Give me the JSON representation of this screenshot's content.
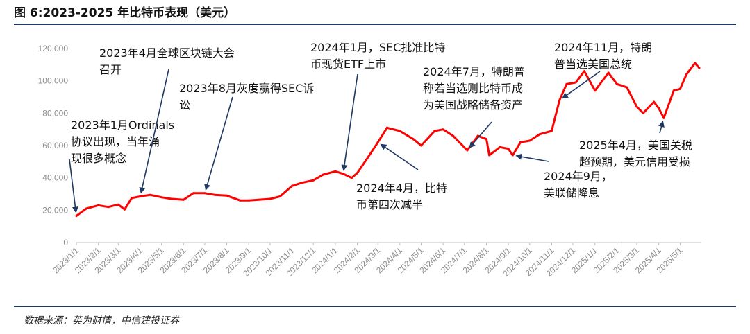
{
  "figure_title": "图 6:2023-2025 年比特币表现（美元）",
  "source": "数据来源：英为财情，中信建投证券",
  "colors": {
    "line": "#ff0000",
    "accent": "#1f3864",
    "tick": "#8c8c8c",
    "arrow": "#1f3864"
  },
  "chart_data": {
    "type": "line",
    "title": "",
    "xlabel": "",
    "ylabel": "",
    "ylim": [
      0,
      120000
    ],
    "yticks": [
      "0",
      "20,000",
      "40,000",
      "60,000",
      "80,000",
      "100,000",
      "120,000"
    ],
    "xticks": [
      "2023/1/1",
      "2023/2/1",
      "2023/3/1",
      "2023/4/1",
      "2023/5/1",
      "2023/6/1",
      "2023/7/1",
      "2023/8/1",
      "2023/9/1",
      "2023/10/1",
      "2023/11/1",
      "2023/12/1",
      "2024/1/1",
      "2024/2/1",
      "2024/3/1",
      "2024/4/1",
      "2024/5/1",
      "2024/6/1",
      "2024/7/1",
      "2024/8/1",
      "2024/9/1",
      "2024/10/1",
      "2024/11/1",
      "2024/12/1",
      "2025/1/1",
      "2025/2/1",
      "2025/3/1",
      "2025/4/1",
      "2025/5/1"
    ],
    "grid": false,
    "series": [
      {
        "x": [
          "2023/1/1",
          "2023/1/15",
          "2023/2/1",
          "2023/2/15",
          "2023/3/1",
          "2023/3/10",
          "2023/3/20",
          "2023/4/1",
          "2023/4/15",
          "2023/5/1",
          "2023/5/15",
          "2023/6/1",
          "2023/6/15",
          "2023/7/1",
          "2023/7/15",
          "2023/8/1",
          "2023/8/20",
          "2023/9/1",
          "2023/9/15",
          "2023/10/1",
          "2023/10/15",
          "2023/11/1",
          "2023/11/15",
          "2023/12/1",
          "2023/12/15",
          "2024/1/1",
          "2024/1/12",
          "2024/1/24",
          "2024/2/1",
          "2024/2/15",
          "2024/3/1",
          "2024/3/14",
          "2024/4/1",
          "2024/4/20",
          "2024/5/1",
          "2024/5/20",
          "2024/6/1",
          "2024/6/15",
          "2024/7/5",
          "2024/7/20",
          "2024/8/1",
          "2024/8/5",
          "2024/8/20",
          "2024/9/1",
          "2024/9/7",
          "2024/9/18",
          "2024/10/1",
          "2024/10/15",
          "2024/11/1",
          "2024/11/12",
          "2024/11/22",
          "2024/12/5",
          "2024/12/17",
          "2025/1/1",
          "2025/1/20",
          "2025/2/1",
          "2025/2/15",
          "2025/3/1",
          "2025/3/10",
          "2025/3/25",
          "2025/4/1",
          "2025/4/8",
          "2025/4/22",
          "2025/5/1",
          "2025/5/10",
          "2025/5/22",
          "2025/5/28"
        ],
        "values": [
          16500,
          21000,
          23000,
          22000,
          23500,
          20500,
          27500,
          28500,
          29500,
          28000,
          27000,
          26500,
          30500,
          30500,
          29500,
          29000,
          26000,
          26000,
          26500,
          27000,
          28500,
          35000,
          37000,
          38500,
          42000,
          44000,
          42500,
          40000,
          43000,
          52000,
          62000,
          71000,
          69000,
          64000,
          60000,
          69000,
          70000,
          66000,
          57000,
          66000,
          64000,
          54000,
          59000,
          58000,
          54000,
          62000,
          63000,
          67000,
          69000,
          88000,
          98000,
          99000,
          106000,
          94000,
          105000,
          98000,
          96000,
          84000,
          80000,
          87000,
          83000,
          77000,
          94000,
          95000,
          104000,
          111000,
          108000
        ]
      }
    ],
    "annotations": [
      {
        "lines": [
          "2023年1月Ordinals",
          "协议出现，当年涌",
          "现很多概念"
        ],
        "point": "2023/1/1"
      },
      {
        "lines": [
          "2023年4月全球区块链大会",
          "召开"
        ],
        "point": "2023/4/1"
      },
      {
        "lines": [
          "2023年8月灰度赢得SEC诉",
          "讼"
        ],
        "point": "2023/7/1"
      },
      {
        "lines": [
          "2024年1月，SEC批准比特",
          "币现货ETF上市"
        ],
        "point": "2024/1/12"
      },
      {
        "lines": [
          "2024年4月，比特",
          "币第四次减半"
        ],
        "point": "2024/3/1"
      },
      {
        "lines": [
          "2024年7月，特朗普",
          "称若当选则比特币成",
          "为美国战略储备资产"
        ],
        "point": "2024/7/5"
      },
      {
        "lines": [
          "2024年9月，",
          "美联储降息"
        ],
        "point": "2024/9/7"
      },
      {
        "lines": [
          "2024年11月，特朗",
          "普当选美国总统"
        ],
        "point": "2024/11/12"
      },
      {
        "lines": [
          "2025年4月，美国关税",
          "超预期，美元信用受损"
        ],
        "point": "2025/4/8"
      }
    ]
  }
}
